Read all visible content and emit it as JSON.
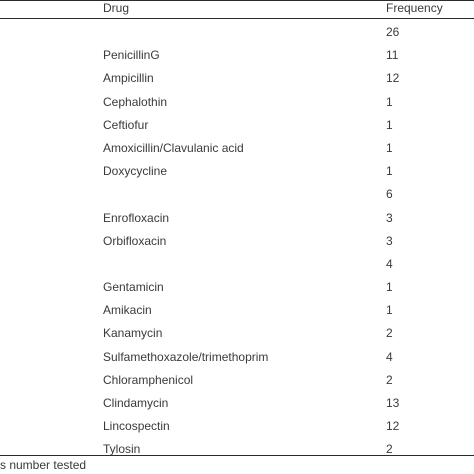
{
  "table": {
    "header": {
      "drug": "Drug",
      "frequency": "Frequency"
    },
    "rows": [
      {
        "drug": "",
        "frequency": "26"
      },
      {
        "drug": "PenicillinG",
        "frequency": "11"
      },
      {
        "drug": "Ampicillin",
        "frequency": "12"
      },
      {
        "drug": "Cephalothin",
        "frequency": "1"
      },
      {
        "drug": "Ceftiofur",
        "frequency": "1"
      },
      {
        "drug": "Amoxicillin/Clavulanic acid",
        "frequency": "1"
      },
      {
        "drug": "Doxycycline",
        "frequency": "1"
      },
      {
        "drug": "",
        "frequency": "6"
      },
      {
        "drug": "Enrofloxacin",
        "frequency": "3"
      },
      {
        "drug": "Orbifloxacin",
        "frequency": "3"
      },
      {
        "drug": "",
        "frequency": "4"
      },
      {
        "drug": "Gentamicin",
        "frequency": "1"
      },
      {
        "drug": "Amikacin",
        "frequency": "1"
      },
      {
        "drug": "Kanamycin",
        "frequency": "2"
      },
      {
        "drug": "Sulfamethoxazole/trimethoprim",
        "frequency": "4"
      },
      {
        "drug": "Chloramphenicol",
        "frequency": "2"
      },
      {
        "drug": "Clindamycin",
        "frequency": "13"
      },
      {
        "drug": "Lincospectin",
        "frequency": "12"
      },
      {
        "drug": "Tylosin",
        "frequency": "2"
      }
    ]
  },
  "footnote": "s number tested"
}
